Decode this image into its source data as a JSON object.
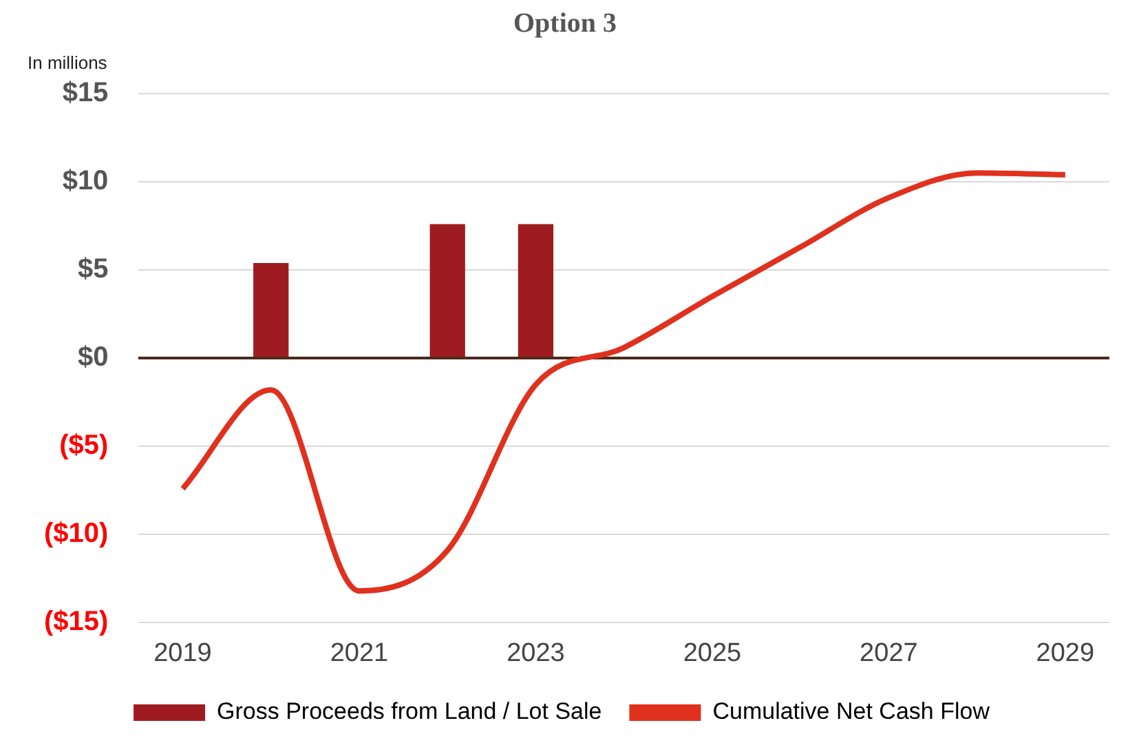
{
  "chart_data": {
    "type": "bar",
    "title": "Option 3",
    "annotations": [
      "In millions"
    ],
    "categories": [
      "2019",
      null,
      "2021",
      null,
      "2023",
      null,
      "2025",
      null,
      "2027",
      null,
      "2029"
    ],
    "series": [
      {
        "name": "Gross Proceeds from Land / Lot Sale",
        "color": "#9e1c20",
        "values": [
          null,
          5.4,
          null,
          7.6,
          7.6,
          null,
          null,
          null,
          null,
          null,
          null
        ]
      },
      {
        "name": "Cumulative Net Cash Flow",
        "type": "line",
        "color": "#e0301e",
        "values": [
          -7.4,
          -1.8,
          -13.2,
          -10.9,
          -1.5,
          0.6,
          3.5,
          6.3,
          9.1,
          10.5,
          10.4
        ]
      }
    ],
    "ylim": [
      -15,
      15
    ],
    "yticks": [
      {
        "value": -15,
        "label": "($15)"
      },
      {
        "value": -10,
        "label": "($10)"
      },
      {
        "value": -5,
        "label": "($5)"
      },
      {
        "value": 0,
        "label": "$0"
      },
      {
        "value": 5,
        "label": "$5"
      },
      {
        "value": 10,
        "label": "$10"
      },
      {
        "value": 15,
        "label": "$15"
      }
    ],
    "grid": "y",
    "legend": "bottom",
    "marker": "none",
    "line_style": "solid"
  }
}
